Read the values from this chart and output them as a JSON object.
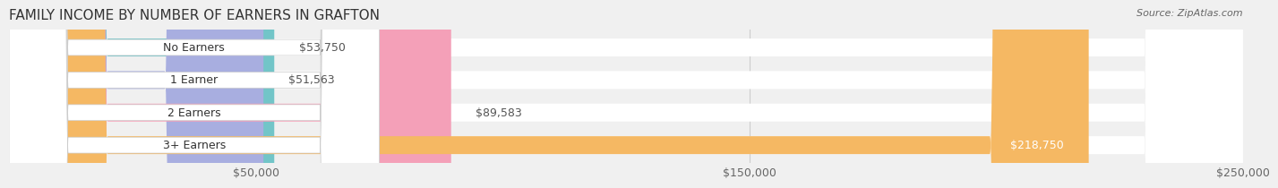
{
  "title": "FAMILY INCOME BY NUMBER OF EARNERS IN GRAFTON",
  "source": "Source: ZipAtlas.com",
  "categories": [
    "No Earners",
    "1 Earner",
    "2 Earners",
    "3+ Earners"
  ],
  "values": [
    53750,
    51563,
    89583,
    218750
  ],
  "bar_colors": [
    "#72c5c8",
    "#a8aee0",
    "#f4a0b8",
    "#f5b863"
  ],
  "label_colors": [
    "#72c5c8",
    "#a8aee0",
    "#f4a0b8",
    "#f5b863"
  ],
  "value_labels": [
    "$53,750",
    "$51,563",
    "$89,583",
    "$218,750"
  ],
  "xmin": 0,
  "xmax": 250000,
  "xticks": [
    50000,
    150000,
    250000
  ],
  "xtick_labels": [
    "$50,000",
    "$150,000",
    "$250,000"
  ],
  "bar_height": 0.55,
  "background_color": "#f0f0f0",
  "bar_background": "#e8e8e8",
  "title_fontsize": 11,
  "label_fontsize": 9,
  "value_fontsize": 9,
  "tick_fontsize": 9
}
